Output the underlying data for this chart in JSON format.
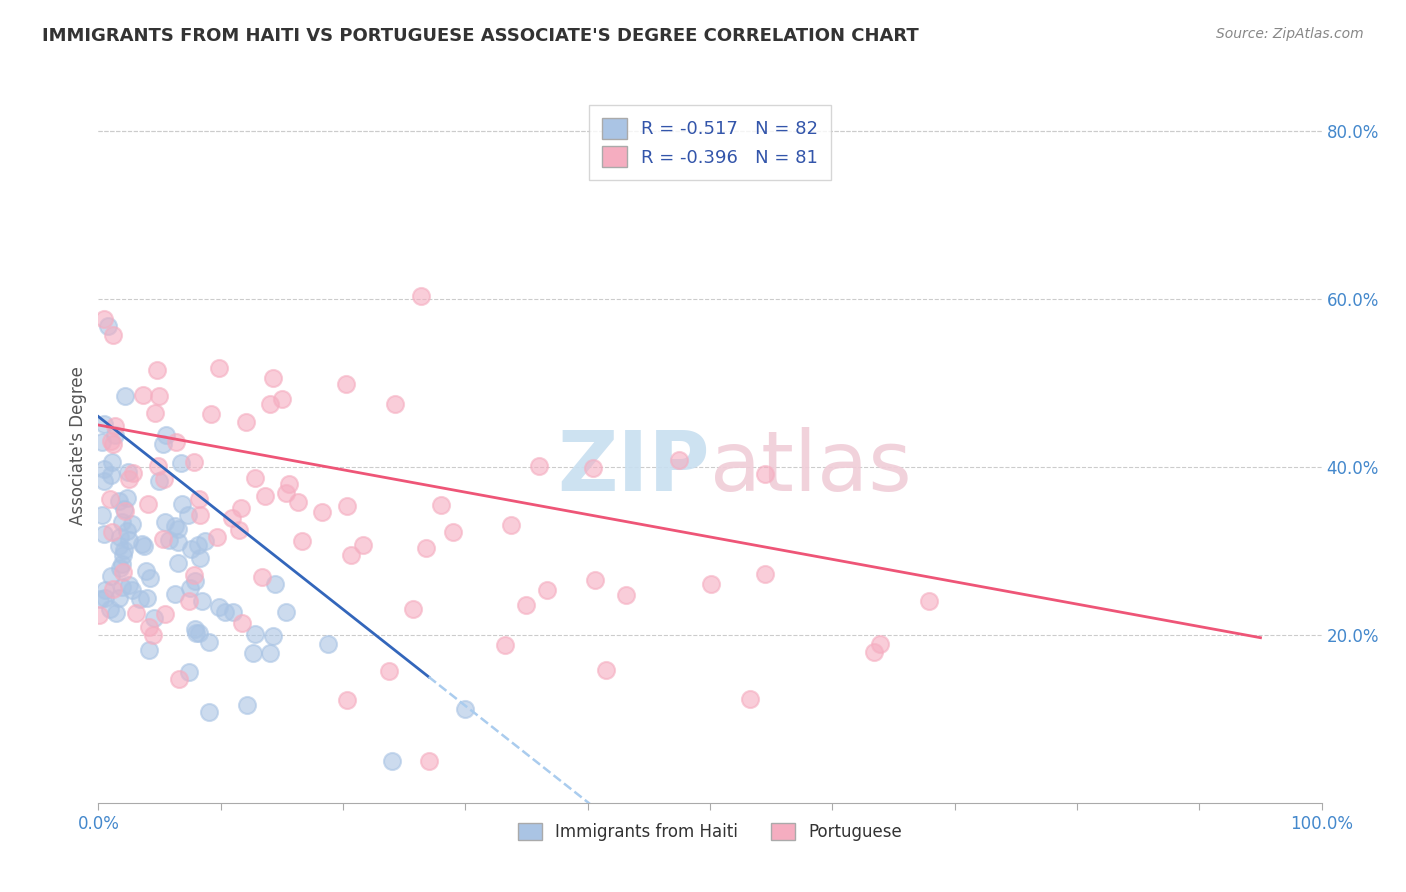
{
  "title": "IMMIGRANTS FROM HAITI VS PORTUGUESE ASSOCIATE'S DEGREE CORRELATION CHART",
  "source": "Source: ZipAtlas.com",
  "ylabel": "Associate's Degree",
  "r1": -0.517,
  "n1": 82,
  "r2": -0.396,
  "n2": 81,
  "color1": "#aac4e4",
  "color2": "#f5adc0",
  "trendline1_color": "#3366bb",
  "trendline2_color": "#ee5577",
  "trendline_dash_color": "#aaccee",
  "xlim": [
    0.0,
    1.0
  ],
  "ylim": [
    0.0,
    0.85
  ],
  "legend_label1": "Immigrants from Haiti",
  "legend_label2": "Portuguese",
  "legend_text_color": "#3355aa",
  "y_tick_color": "#4488cc",
  "x_edge_color": "#4488cc",
  "title_color": "#333333",
  "source_color": "#888888",
  "grid_color": "#cccccc",
  "watermark_zip_color": "#c8dff0",
  "watermark_atlas_color": "#f0cdd8"
}
